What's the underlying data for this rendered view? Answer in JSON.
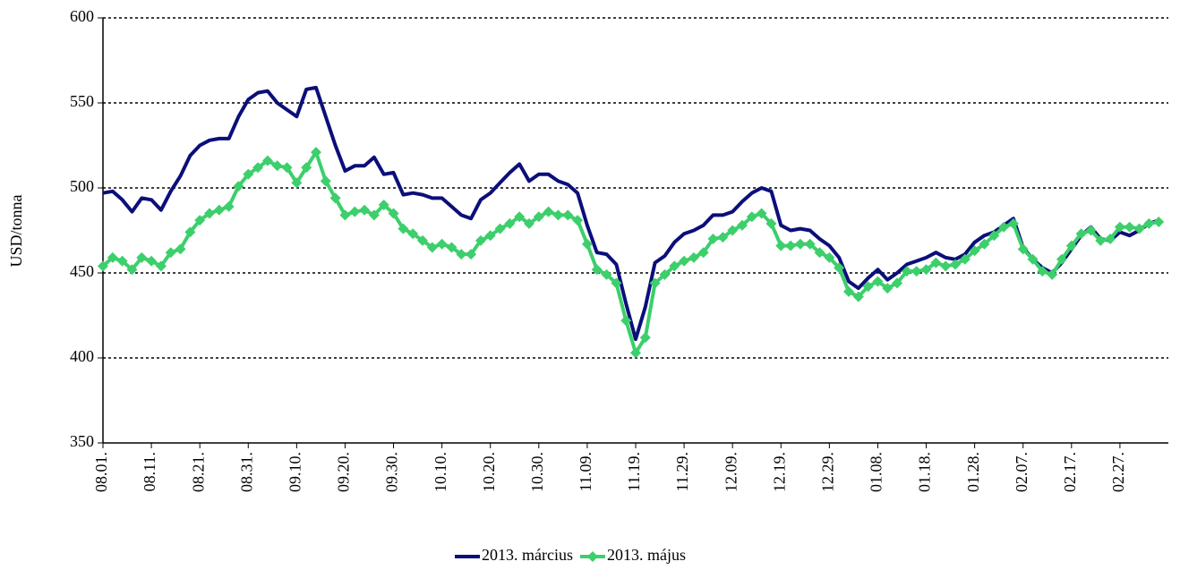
{
  "chart_data": {
    "type": "line",
    "y_label": "USD/tonna",
    "categories": [
      "08.01.",
      null,
      null,
      null,
      null,
      "08.11.",
      null,
      null,
      null,
      null,
      "08.21.",
      null,
      null,
      null,
      null,
      "08.31.",
      null,
      null,
      null,
      null,
      "09.10.",
      null,
      null,
      null,
      null,
      "09.20.",
      null,
      null,
      null,
      null,
      "09.30.",
      null,
      null,
      null,
      null,
      "10.10.",
      null,
      null,
      null,
      null,
      "10.20.",
      null,
      null,
      null,
      null,
      "10.30.",
      null,
      null,
      null,
      null,
      "11.09.",
      null,
      null,
      null,
      null,
      "11.19.",
      null,
      null,
      null,
      null,
      "11.29.",
      null,
      null,
      null,
      null,
      "12.09.",
      null,
      null,
      null,
      null,
      "12.19.",
      null,
      null,
      null,
      null,
      "12.29.",
      null,
      null,
      null,
      null,
      "01.08.",
      null,
      null,
      null,
      null,
      "01.18.",
      null,
      null,
      null,
      null,
      "01.28.",
      null,
      null,
      null,
      null,
      "02.07.",
      null,
      null,
      null,
      null,
      "02.17.",
      null,
      null,
      null,
      null,
      "02.27.",
      null,
      null,
      null,
      null
    ],
    "series": [
      {
        "name": "2013. március",
        "color": "#0b0f7a",
        "marker": "none",
        "values": [
          497,
          498,
          493,
          486,
          494,
          493,
          487,
          498,
          507,
          519,
          525,
          528,
          529,
          529,
          542,
          552,
          556,
          557,
          550,
          546,
          542,
          558,
          559,
          542,
          525,
          510,
          513,
          513,
          518,
          508,
          509,
          496,
          497,
          496,
          494,
          494,
          489,
          484,
          482,
          493,
          497,
          503,
          509,
          514,
          504,
          508,
          508,
          504,
          502,
          497,
          478,
          462,
          461,
          455,
          432,
          411,
          430,
          456,
          460,
          468,
          473,
          475,
          478,
          484,
          484,
          486,
          492,
          497,
          500,
          498,
          478,
          475,
          476,
          475,
          470,
          466,
          459,
          445,
          441,
          447,
          452,
          446,
          450,
          455,
          457,
          459,
          462,
          459,
          458,
          461,
          468,
          472,
          474,
          478,
          482,
          465,
          458,
          453,
          450,
          456,
          464,
          472,
          477,
          470,
          469,
          474,
          472,
          475,
          479,
          481
        ]
      },
      {
        "name": "2013. május",
        "color": "#3ccf6b",
        "marker": "diamond",
        "values": [
          454,
          459,
          457,
          452,
          459,
          457,
          454,
          462,
          464,
          474,
          481,
          485,
          487,
          489,
          501,
          508,
          512,
          516,
          513,
          512,
          503,
          512,
          521,
          504,
          494,
          484,
          486,
          487,
          484,
          490,
          485,
          476,
          473,
          469,
          465,
          467,
          465,
          461,
          461,
          469,
          472,
          476,
          479,
          483,
          479,
          483,
          486,
          484,
          484,
          481,
          467,
          452,
          449,
          444,
          422,
          403,
          412,
          444,
          449,
          454,
          457,
          459,
          462,
          470,
          471,
          475,
          478,
          483,
          485,
          479,
          466,
          466,
          467,
          467,
          462,
          459,
          453,
          439,
          436,
          442,
          445,
          441,
          444,
          451,
          451,
          452,
          456,
          454,
          455,
          458,
          463,
          467,
          472,
          477,
          479,
          464,
          458,
          451,
          449,
          458,
          466,
          473,
          475,
          469,
          470,
          477,
          477,
          476,
          479,
          480
        ]
      }
    ],
    "ylim": [
      350,
      600
    ],
    "yticks": [
      350,
      400,
      450,
      500,
      550,
      600
    ],
    "grid": true,
    "legend": "bottom"
  }
}
